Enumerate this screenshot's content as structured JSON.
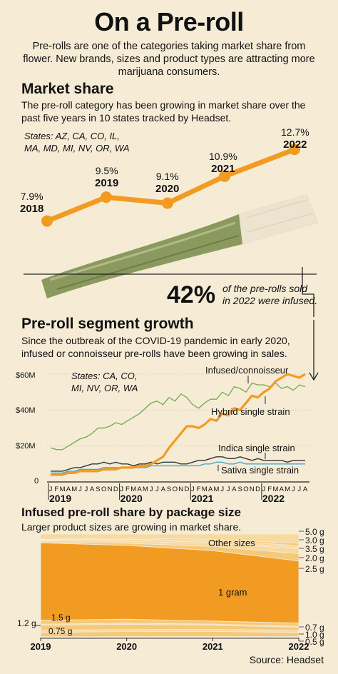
{
  "header": {
    "title": "On a Pre-roll",
    "intro": "Pre-rolls are one of the categories taking market share from flower. New brands, sizes and product types are attracting more marijuana consumers."
  },
  "market_share": {
    "title": "Market share",
    "text": "The pre-roll category has been growing in market share over the past five years in 10 states tracked by Headset.",
    "states_line1": "States: AZ, CA, CO, IL,",
    "states_line2": "MA, MD, MI, NV, OR, WA",
    "labels": [
      {
        "pct": "7.9%",
        "year": "2018"
      },
      {
        "pct": "9.5%",
        "year": "2019"
      },
      {
        "pct": "9.1%",
        "year": "2020"
      },
      {
        "pct": "10.9%",
        "year": "2021"
      },
      {
        "pct": "12.7%",
        "year": "2022"
      }
    ]
  },
  "callout": {
    "big": "42%",
    "line1": "of the pre-rolls sold",
    "line2": "in 2022 were infused."
  },
  "segment": {
    "title": "Pre-roll segment growth",
    "text": "Since the outbreak of the COVID-19 pandemic in early 2020, infused or connoisseur pre-rolls have been growing in sales.",
    "states_line1": "States: CA, CO,",
    "states_line2": "MI, NV, OR, WA",
    "y_ticks": [
      "$60M",
      "$40M",
      "$20M",
      "0"
    ],
    "month_letters": [
      "J",
      "F",
      "M",
      "A",
      "M",
      "J",
      "J",
      "A",
      "S",
      "O",
      "N",
      "D",
      "J",
      "F",
      "M",
      "A",
      "M",
      "J",
      "J",
      "A",
      "S",
      "O",
      "N",
      "D",
      "J",
      "F",
      "M",
      "A",
      "M",
      "J",
      "J",
      "A",
      "S",
      "O",
      "N",
      "D",
      "J",
      "F",
      "M",
      "A",
      "M",
      "J",
      "J",
      "A"
    ],
    "years": [
      "2019",
      "2020",
      "2021",
      "2022"
    ],
    "series_labels": {
      "infused": "Infused/connoisseur",
      "hybrid": "Hybrid single strain",
      "indica": "Indica single strain",
      "sativa": "Sativa single strain"
    }
  },
  "package": {
    "title": "Infused pre-roll share by package size",
    "text": "Larger product sizes are growing in market share.",
    "band_labels": {
      "other": "Other sizes",
      "one_gram": "1 gram",
      "g15": "1.5 g",
      "g075": "0.75 g"
    },
    "left_label": "1.2 g",
    "right_labels": [
      "5.0 g",
      "3.0 g",
      "3.5 g",
      "2.0 g",
      "2.5 g",
      "0.7 g",
      "1.0 g",
      "0.5 g"
    ],
    "years": [
      "2019",
      "2020",
      "2021",
      "2022"
    ]
  },
  "source": "Source: Headset",
  "colors": {
    "orange": "#f29b22",
    "green": "#7cab5a",
    "blue": "#46a7c9",
    "dark": "#2a3a45",
    "band_light": "#f8d9a0",
    "band_mid": "#f5c97a",
    "background": "#f6ecd6"
  },
  "chart_data": [
    {
      "type": "line",
      "title": "Market share",
      "x": [
        "2018",
        "2019",
        "2020",
        "2021",
        "2022"
      ],
      "series": [
        {
          "values": [
            7.9,
            9.5,
            9.1,
            10.9,
            12.7
          ]
        }
      ],
      "ylim": [
        7.5,
        13
      ]
    },
    {
      "type": "line",
      "title": "Pre-roll segment growth",
      "x_start": "2019-01",
      "x_end": "2022-08",
      "ylim": [
        0,
        65
      ],
      "yticks": [
        0,
        20,
        40,
        60
      ],
      "series": [
        {
          "name": "Infused/connoisseur",
          "values": [
            4,
            4,
            4,
            5,
            5,
            6,
            6,
            6,
            6,
            7,
            7,
            7,
            8,
            8,
            8,
            9,
            9,
            10,
            12,
            14,
            19,
            23,
            27,
            31,
            31,
            30,
            32,
            35,
            34,
            38,
            37,
            41,
            40,
            44,
            48,
            47,
            50,
            52,
            56,
            58,
            60,
            59,
            58,
            60
          ]
        },
        {
          "name": "Hybrid single strain",
          "values": [
            19,
            18,
            18,
            20,
            22,
            24,
            25,
            27,
            30,
            30,
            31,
            33,
            32,
            34,
            36,
            38,
            41,
            44,
            45,
            43,
            47,
            45,
            49,
            47,
            43,
            41,
            44,
            46,
            46,
            50,
            48,
            53,
            52,
            50,
            55,
            54,
            54,
            53,
            55,
            52,
            53,
            51,
            54,
            53
          ]
        },
        {
          "name": "Indica single strain",
          "values": [
            6,
            6,
            6,
            7,
            8,
            8,
            9,
            10,
            10,
            11,
            10,
            11,
            10,
            10,
            9,
            10,
            10,
            11,
            10,
            11,
            11,
            11,
            10,
            10,
            11,
            12,
            12,
            13,
            14,
            14,
            13,
            13,
            14,
            13,
            12,
            13,
            12,
            12,
            12,
            12,
            11,
            12,
            12,
            12
          ]
        },
        {
          "name": "Sativa single strain",
          "values": [
            5,
            5,
            5,
            6,
            6,
            7,
            7,
            7,
            7,
            8,
            8,
            8,
            8,
            8,
            8,
            8,
            8,
            9,
            9,
            9,
            9,
            9,
            9,
            9,
            9,
            9,
            10,
            10,
            11,
            11,
            10,
            10,
            11,
            10,
            10,
            10,
            10,
            10,
            10,
            10,
            10,
            10,
            10,
            10
          ]
        }
      ]
    },
    {
      "type": "area",
      "title": "Infused pre-roll share by package size",
      "x": [
        "2019",
        "2020",
        "2021",
        "2022"
      ],
      "series": [
        {
          "name": "0.5 g",
          "values": [
            1,
            1,
            1,
            1
          ]
        },
        {
          "name": "1.0 g",
          "values": [
            4,
            5,
            5,
            4
          ]
        },
        {
          "name": "0.7 g",
          "values": [
            2,
            2,
            2,
            2
          ]
        },
        {
          "name": "0.75 g",
          "values": [
            5,
            5,
            4,
            3
          ]
        },
        {
          "name": "1.2 g",
          "values": [
            1,
            1,
            1,
            1
          ]
        },
        {
          "name": "1.5 g",
          "values": [
            4,
            4,
            3,
            3
          ]
        },
        {
          "name": "1 gram",
          "values": [
            75,
            72,
            68,
            60
          ]
        },
        {
          "name": "2.5 g",
          "values": [
            1,
            2,
            4,
            7
          ]
        },
        {
          "name": "2.0 g",
          "values": [
            1,
            2,
            3,
            5
          ]
        },
        {
          "name": "3.5 g",
          "values": [
            0.5,
            1,
            1,
            1
          ]
        },
        {
          "name": "3.0 g",
          "values": [
            0.5,
            1,
            2,
            2
          ]
        },
        {
          "name": "5.0 g",
          "values": [
            0.5,
            1,
            1,
            2
          ]
        },
        {
          "name": "Other sizes",
          "values": [
            5,
            4,
            5,
            9
          ]
        }
      ]
    }
  ]
}
